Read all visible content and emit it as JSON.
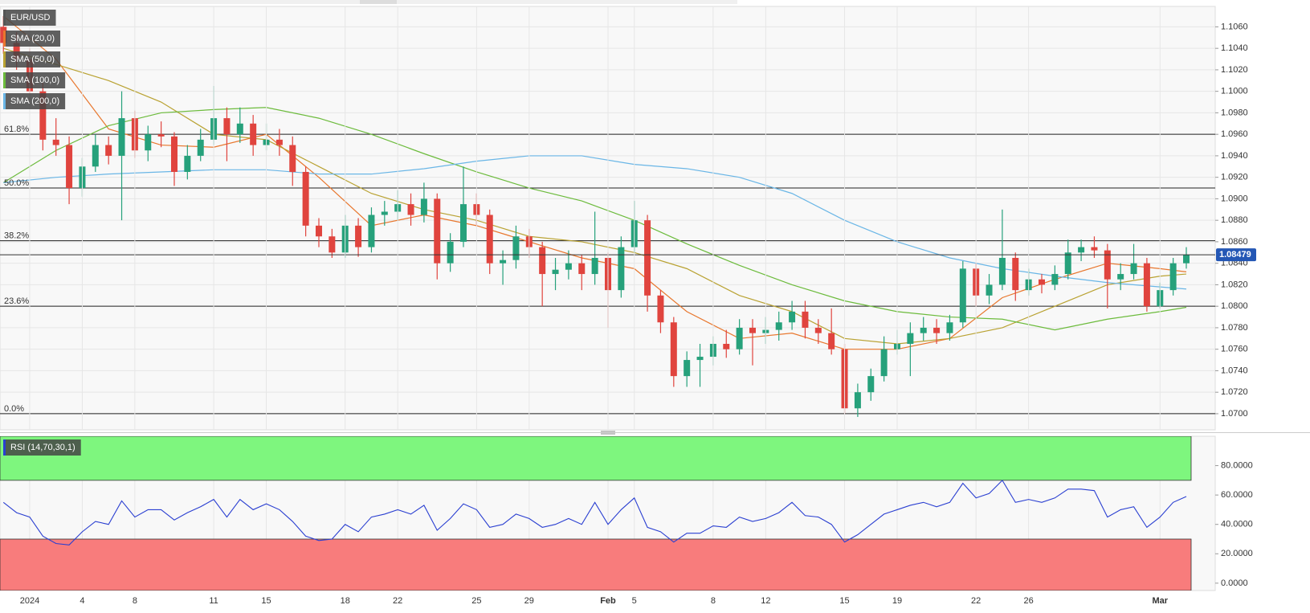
{
  "chart_data": [
    {
      "type": "candlestick",
      "symbol": "EUR/USD",
      "up_color": "#26a17b",
      "down_color": "#e0443e",
      "xlim": [
        -1.13,
        45.1
      ],
      "ylim": [
        1.0685,
        1.1079
      ],
      "yticks": [
        {
          "value": 1.07,
          "label": "1.0700"
        },
        {
          "value": 1.072,
          "label": "1.0720"
        },
        {
          "value": 1.074,
          "label": "1.0740"
        },
        {
          "value": 1.076,
          "label": "1.0760"
        },
        {
          "value": 1.078,
          "label": "1.0780"
        },
        {
          "value": 1.08,
          "label": "1.0800"
        },
        {
          "value": 1.082,
          "label": "1.0820"
        },
        {
          "value": 1.084,
          "label": "1.0840"
        },
        {
          "value": 1.086,
          "label": "1.0860"
        },
        {
          "value": 1.088,
          "label": "1.0880"
        },
        {
          "value": 1.09,
          "label": "1.0900"
        },
        {
          "value": 1.092,
          "label": "1.0920"
        },
        {
          "value": 1.094,
          "label": "1.0940"
        },
        {
          "value": 1.096,
          "label": "1.0960"
        },
        {
          "value": 1.098,
          "label": "1.0980"
        },
        {
          "value": 1.1,
          "label": "1.1000"
        },
        {
          "value": 1.102,
          "label": "1.1020"
        },
        {
          "value": 1.104,
          "label": "1.1040"
        },
        {
          "value": 1.106,
          "label": "1.1060"
        }
      ],
      "grid": true,
      "ohlc": {
        "x": [
          -1,
          -0.5,
          0,
          0.5,
          1,
          1.5,
          2,
          2.5,
          3,
          3.5,
          4,
          4.5,
          5,
          5.5,
          6,
          6.5,
          7,
          7.5,
          8,
          8.5,
          9,
          9.5,
          10,
          10.5,
          11,
          11.5,
          12,
          12.5,
          13,
          13.5,
          14,
          14.5,
          15,
          15.5,
          16,
          16.5,
          17,
          17.5,
          18,
          18.5,
          19,
          19.5,
          20,
          20.5,
          21,
          21.5,
          22,
          22.5,
          23,
          23.5,
          24,
          24.5,
          25,
          25.5,
          26,
          26.5,
          27,
          27.5,
          28,
          28.5,
          29,
          29.5,
          30,
          30.5,
          31,
          31.5,
          32,
          32.5,
          33,
          33.5,
          34,
          34.5,
          35,
          35.5,
          36,
          36.5,
          37,
          37.5,
          38,
          38.5,
          39,
          39.5,
          40,
          40.5,
          41,
          41.5,
          42,
          42.5,
          43,
          43.5,
          44
        ],
        "open": [
          1.106,
          1.1045,
          1.103,
          1.1,
          1.0955,
          1.095,
          1.091,
          1.093,
          1.095,
          1.094,
          1.0975,
          1.0945,
          1.096,
          1.0958,
          1.0925,
          1.094,
          1.0955,
          1.0975,
          1.096,
          1.097,
          1.095,
          1.0955,
          1.095,
          1.0925,
          1.0875,
          1.0865,
          1.085,
          1.0875,
          1.0855,
          1.0885,
          1.0888,
          1.0895,
          1.0885,
          1.09,
          1.084,
          1.086,
          1.0895,
          1.0885,
          1.084,
          1.0843,
          1.0865,
          1.0855,
          1.083,
          1.0834,
          1.084,
          1.083,
          1.0845,
          1.0815,
          1.0855,
          1.088,
          1.081,
          1.0785,
          1.0735,
          1.075,
          1.0753,
          1.0765,
          1.076,
          1.078,
          1.0775,
          1.0778,
          1.0785,
          1.0795,
          1.078,
          1.0775,
          1.076,
          1.0705,
          1.072,
          1.0735,
          1.076,
          1.0765,
          1.0775,
          1.078,
          1.0775,
          1.0785,
          1.0835,
          1.081,
          1.082,
          1.0845,
          1.0815,
          1.0825,
          1.082,
          1.083,
          1.085,
          1.0855,
          1.0852,
          1.0825,
          1.083,
          1.084,
          1.08,
          1.0815,
          1.084
        ],
        "high": [
          1.107,
          1.1055,
          1.104,
          1.1008,
          1.0975,
          1.0958,
          1.0938,
          1.096,
          1.0958,
          1.1,
          1.0982,
          1.0968,
          1.0972,
          1.0962,
          1.095,
          1.0965,
          1.1005,
          1.0985,
          1.0985,
          1.0978,
          1.097,
          1.0965,
          1.0958,
          1.093,
          1.0882,
          1.0872,
          1.0885,
          1.0882,
          1.0892,
          1.0898,
          1.0908,
          1.0905,
          1.0915,
          1.0905,
          1.0868,
          1.093,
          1.0905,
          1.089,
          1.0852,
          1.0875,
          1.0872,
          1.086,
          1.0845,
          1.0852,
          1.0848,
          1.0888,
          1.085,
          1.0865,
          1.0898,
          1.0885,
          1.0815,
          1.079,
          1.0758,
          1.0765,
          1.0772,
          1.0778,
          1.0788,
          1.0788,
          1.079,
          1.0795,
          1.0805,
          1.0805,
          1.0788,
          1.0798,
          1.0765,
          1.0728,
          1.0742,
          1.0772,
          1.0778,
          1.0785,
          1.079,
          1.0788,
          1.0792,
          1.0842,
          1.084,
          1.083,
          1.089,
          1.085,
          1.0835,
          1.083,
          1.0838,
          1.0862,
          1.0862,
          1.0865,
          1.0858,
          1.084,
          1.0858,
          1.0845,
          1.0822,
          1.0845,
          1.0855
        ],
        "low": [
          1.1035,
          1.102,
          1.099,
          1.0945,
          1.094,
          1.0895,
          1.0902,
          1.0925,
          1.0932,
          1.088,
          1.0938,
          1.0935,
          1.0948,
          1.0912,
          1.0918,
          1.0935,
          1.095,
          1.0935,
          1.0952,
          1.094,
          1.0945,
          1.094,
          1.0912,
          1.0865,
          1.0855,
          1.0845,
          1.0845,
          1.0846,
          1.085,
          1.0875,
          1.088,
          1.0875,
          1.0878,
          1.0825,
          1.0832,
          1.0855,
          1.0875,
          1.083,
          1.082,
          1.0835,
          1.0845,
          1.08,
          1.0815,
          1.0825,
          1.0815,
          1.082,
          1.078,
          1.0808,
          1.085,
          1.0795,
          1.0775,
          1.0725,
          1.0725,
          1.0725,
          1.0745,
          1.0752,
          1.0755,
          1.0745,
          1.0765,
          1.0768,
          1.0778,
          1.077,
          1.0765,
          1.0755,
          1.07,
          1.0697,
          1.0712,
          1.073,
          1.0755,
          1.0735,
          1.0768,
          1.0765,
          1.0768,
          1.078,
          1.08,
          1.0802,
          1.0815,
          1.0805,
          1.081,
          1.0812,
          1.0815,
          1.0825,
          1.0842,
          1.0845,
          1.0798,
          1.0815,
          1.0825,
          1.0795,
          1.0798,
          1.081,
          1.0835
        ],
        "close": [
          1.1045,
          1.103,
          1.1,
          1.0955,
          1.095,
          1.091,
          1.093,
          1.095,
          1.094,
          1.0975,
          1.0945,
          1.096,
          1.0958,
          1.0925,
          1.094,
          1.0955,
          1.0975,
          1.096,
          1.097,
          1.095,
          1.0955,
          1.095,
          1.0925,
          1.0875,
          1.0865,
          1.085,
          1.0875,
          1.0855,
          1.0885,
          1.0888,
          1.0895,
          1.0885,
          1.09,
          1.084,
          1.086,
          1.0895,
          1.0885,
          1.084,
          1.0843,
          1.0865,
          1.0855,
          1.083,
          1.0834,
          1.084,
          1.083,
          1.0845,
          1.0815,
          1.0855,
          1.088,
          1.081,
          1.0785,
          1.0735,
          1.075,
          1.0753,
          1.0765,
          1.076,
          1.078,
          1.0775,
          1.0778,
          1.0785,
          1.0795,
          1.078,
          1.0775,
          1.076,
          1.0705,
          1.072,
          1.0735,
          1.076,
          1.0765,
          1.0775,
          1.078,
          1.0775,
          1.0785,
          1.0835,
          1.081,
          1.082,
          1.0845,
          1.0815,
          1.0825,
          1.082,
          1.083,
          1.085,
          1.0855,
          1.0852,
          1.0825,
          1.083,
          1.084,
          1.08,
          1.0815,
          1.084,
          1.0848
        ]
      },
      "series": [
        {
          "name": "SMA (20,0)",
          "color": "#e8772e",
          "x": [
            -1,
            1,
            3,
            5,
            7,
            9,
            11,
            13,
            15,
            17,
            19,
            21,
            23,
            25,
            27,
            29,
            31,
            33,
            35,
            37,
            39,
            41,
            43,
            44
          ],
          "values": [
            1.107,
            1.103,
            1.0965,
            1.095,
            1.0948,
            1.096,
            1.092,
            1.0875,
            1.0885,
            1.0875,
            1.086,
            1.0845,
            1.0835,
            1.0795,
            1.077,
            1.0775,
            1.076,
            1.076,
            1.077,
            1.0808,
            1.0825,
            1.084,
            1.0835,
            1.0832
          ]
        },
        {
          "name": "SMA (50,0)",
          "color": "#b9a232",
          "x": [
            -1,
            1,
            3,
            5,
            7,
            9,
            11,
            13,
            15,
            17,
            19,
            21,
            23,
            25,
            27,
            29,
            31,
            33,
            35,
            37,
            39,
            41,
            43,
            44
          ],
          "values": [
            1.104,
            1.1025,
            1.101,
            1.099,
            1.096,
            1.0955,
            1.093,
            1.0905,
            1.089,
            1.088,
            1.0865,
            1.086,
            1.085,
            1.0835,
            1.081,
            1.0795,
            1.077,
            1.0765,
            1.077,
            1.078,
            1.08,
            1.082,
            1.0828,
            1.083
          ]
        },
        {
          "name": "SMA (100,0)",
          "color": "#6cbb3c",
          "x": [
            -1,
            1,
            3,
            5,
            7,
            9,
            11,
            13,
            15,
            17,
            19,
            21,
            23,
            25,
            27,
            29,
            31,
            33,
            35,
            37,
            39,
            41,
            43,
            44
          ],
          "values": [
            1.0915,
            1.0945,
            1.0968,
            1.098,
            1.0983,
            1.0985,
            1.0975,
            1.096,
            1.0942,
            1.0925,
            1.091,
            1.0898,
            1.088,
            1.0858,
            1.0838,
            1.082,
            1.0805,
            1.0795,
            1.079,
            1.0788,
            1.0778,
            1.0788,
            1.0795,
            1.0799
          ]
        },
        {
          "name": "SMA (200,0)",
          "color": "#6ab6e6",
          "x": [
            -1,
            1,
            3,
            5,
            7,
            9,
            11,
            13,
            15,
            17,
            19,
            21,
            23,
            25,
            27,
            29,
            31,
            33,
            35,
            37,
            39,
            41,
            43,
            44
          ],
          "values": [
            1.0915,
            1.092,
            1.0923,
            1.0925,
            1.0927,
            1.0927,
            1.0923,
            1.0923,
            1.0928,
            1.0935,
            1.094,
            1.094,
            1.0932,
            1.0928,
            1.092,
            1.0905,
            1.088,
            1.086,
            1.0845,
            1.0835,
            1.0828,
            1.0822,
            1.0818,
            1.0816
          ]
        }
      ],
      "levels": [
        {
          "label": "61.8%",
          "value": 1.096
        },
        {
          "label": "50.0%",
          "value": 1.091
        },
        {
          "label": "38.2%",
          "value": 1.0861
        },
        {
          "label": "23.6%",
          "value": 1.08
        },
        {
          "label": "0.0%",
          "value": 1.07
        }
      ],
      "last_price": {
        "value": 1.08479,
        "label": "1.08479"
      }
    },
    {
      "type": "line",
      "xlim": [
        -1.13,
        45.1
      ],
      "ylim": [
        -5,
        100
      ],
      "yticks": [
        {
          "value": 0,
          "label": "0.0000"
        },
        {
          "value": 20,
          "label": "20.0000"
        },
        {
          "value": 40,
          "label": "40.0000"
        },
        {
          "value": 60,
          "label": "60.0000"
        },
        {
          "value": 80,
          "label": "80.0000"
        }
      ],
      "overbought": 70,
      "oversold": 30,
      "overbought_color": "#7ef67e",
      "oversold_color": "#f87c7c",
      "series": [
        {
          "name": "RSI (14,70,30,1)",
          "color": "#2a3fd1",
          "x": [
            -1,
            -0.5,
            0,
            0.5,
            1,
            1.5,
            2,
            2.5,
            3,
            3.5,
            4,
            4.5,
            5,
            5.5,
            6,
            6.5,
            7,
            7.5,
            8,
            8.5,
            9,
            9.5,
            10,
            10.5,
            11,
            11.5,
            12,
            12.5,
            13,
            13.5,
            14,
            14.5,
            15,
            15.5,
            16,
            16.5,
            17,
            17.5,
            18,
            18.5,
            19,
            19.5,
            20,
            20.5,
            21,
            21.5,
            22,
            22.5,
            23,
            23.5,
            24,
            24.5,
            25,
            25.5,
            26,
            26.5,
            27,
            27.5,
            28,
            28.5,
            29,
            29.5,
            30,
            30.5,
            31,
            31.5,
            32,
            32.5,
            33,
            33.5,
            34,
            34.5,
            35,
            35.5,
            36,
            36.5,
            37,
            37.5,
            38,
            38.5,
            39,
            39.5,
            40,
            40.5,
            41,
            41.5,
            42,
            42.5,
            43,
            43.5,
            44
          ],
          "values": [
            55,
            48,
            45,
            32,
            27,
            26,
            35,
            42,
            40,
            56,
            45,
            50,
            50,
            43,
            48,
            52,
            57,
            45,
            57,
            50,
            54,
            50,
            42,
            32,
            29,
            30,
            40,
            35,
            45,
            47,
            50,
            47,
            53,
            36,
            44,
            54,
            50,
            38,
            40,
            47,
            44,
            38,
            40,
            44,
            40,
            55,
            40,
            50,
            58,
            38,
            35,
            28,
            34,
            34,
            39,
            38,
            45,
            42,
            44,
            48,
            55,
            46,
            45,
            40,
            28,
            33,
            40,
            47,
            50,
            53,
            55,
            52,
            55,
            68,
            58,
            61,
            70,
            55,
            57,
            55,
            58,
            64,
            64,
            63,
            45,
            50,
            52,
            38,
            45,
            55,
            59
          ]
        }
      ],
      "xticks": [
        {
          "value": 0,
          "label": "2024"
        },
        {
          "value": 2,
          "label": "4"
        },
        {
          "value": 4,
          "label": "8"
        },
        {
          "value": 7,
          "label": "11"
        },
        {
          "value": 9,
          "label": "15"
        },
        {
          "value": 12,
          "label": "18"
        },
        {
          "value": 14,
          "label": "22"
        },
        {
          "value": 17,
          "label": "25"
        },
        {
          "value": 19,
          "label": "29"
        },
        {
          "value": 22,
          "label": "Feb"
        },
        {
          "value": 23,
          "label": "5"
        },
        {
          "value": 26,
          "label": "8"
        },
        {
          "value": 28,
          "label": "12"
        },
        {
          "value": 31,
          "label": "15"
        },
        {
          "value": 33,
          "label": "19"
        },
        {
          "value": 36,
          "label": "22"
        },
        {
          "value": 38,
          "label": "26"
        },
        {
          "value": 43,
          "label": "Mar"
        }
      ]
    }
  ]
}
